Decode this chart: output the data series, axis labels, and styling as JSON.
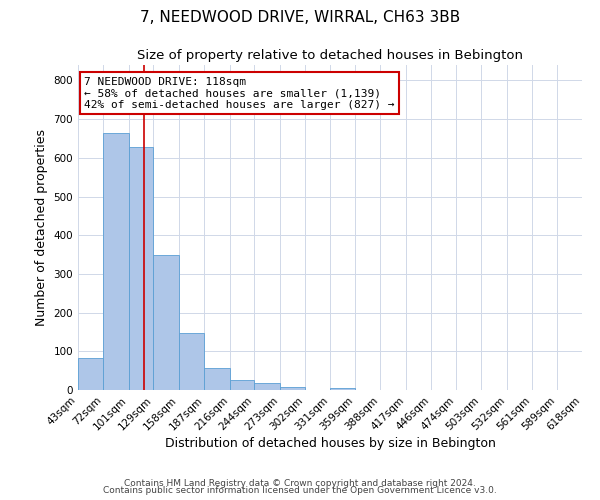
{
  "title": "7, NEEDWOOD DRIVE, WIRRAL, CH63 3BB",
  "subtitle": "Size of property relative to detached houses in Bebington",
  "xlabel": "Distribution of detached houses by size in Bebington",
  "ylabel": "Number of detached properties",
  "bin_labels": [
    "43sqm",
    "72sqm",
    "101sqm",
    "129sqm",
    "158sqm",
    "187sqm",
    "216sqm",
    "244sqm",
    "273sqm",
    "302sqm",
    "331sqm",
    "359sqm",
    "388sqm",
    "417sqm",
    "446sqm",
    "474sqm",
    "503sqm",
    "532sqm",
    "561sqm",
    "589sqm",
    "618sqm"
  ],
  "bar_values": [
    82,
    663,
    628,
    348,
    148,
    57,
    27,
    18,
    8,
    0,
    5,
    0,
    0,
    0,
    0,
    0,
    0,
    0,
    0,
    0,
    0
  ],
  "bar_color": "#aec6e8",
  "bar_edge_color": "#5a9fd4",
  "bin_edges": [
    43,
    72,
    101,
    129,
    158,
    187,
    216,
    244,
    273,
    302,
    331,
    359,
    388,
    417,
    446,
    474,
    503,
    532,
    561,
    589,
    618
  ],
  "property_size": 118,
  "annotation_title": "7 NEEDWOOD DRIVE: 118sqm",
  "annotation_line1": "← 58% of detached houses are smaller (1,139)",
  "annotation_line2": "42% of semi-detached houses are larger (827) →",
  "annotation_box_color": "#ffffff",
  "annotation_border_color": "#cc0000",
  "vline_color": "#cc0000",
  "ylim": [
    0,
    840
  ],
  "yticks": [
    0,
    100,
    200,
    300,
    400,
    500,
    600,
    700,
    800
  ],
  "footer1": "Contains HM Land Registry data © Crown copyright and database right 2024.",
  "footer2": "Contains public sector information licensed under the Open Government Licence v3.0.",
  "background_color": "#ffffff",
  "grid_color": "#d0d8e8",
  "title_fontsize": 11,
  "subtitle_fontsize": 9.5,
  "axis_label_fontsize": 9,
  "tick_fontsize": 7.5,
  "annot_fontsize": 8,
  "footer_fontsize": 6.5
}
